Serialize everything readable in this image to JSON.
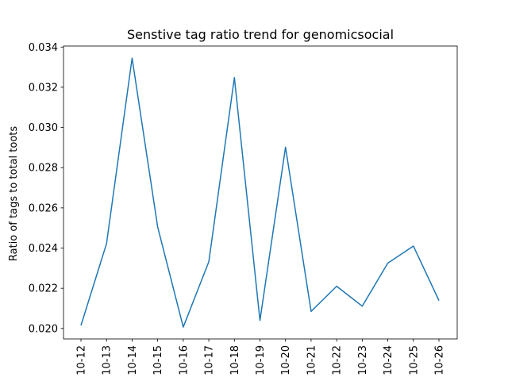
{
  "chart_data": {
    "type": "line",
    "title": "Senstive tag ratio trend for genomicsocial",
    "xlabel": "",
    "ylabel": "Ratio of tags to total toots",
    "categories": [
      "10-12",
      "10-13",
      "10-14",
      "10-15",
      "10-16",
      "10-17",
      "10-18",
      "10-19",
      "10-20",
      "10-21",
      "10-22",
      "10-23",
      "10-24",
      "10-25",
      "10-26"
    ],
    "series": [
      {
        "values": [
          0.02015,
          0.02422,
          0.03345,
          0.02505,
          0.02007,
          0.02332,
          0.03248,
          0.0204,
          0.02902,
          0.02085,
          0.0221,
          0.02111,
          0.02325,
          0.0241,
          0.02139
        ],
        "color": "#1f77b4"
      }
    ],
    "yticks": [
      "0.020",
      "0.022",
      "0.024",
      "0.026",
      "0.028",
      "0.030",
      "0.032",
      "0.034"
    ],
    "ylim": [
      0.01948,
      0.03405
    ],
    "grid": false
  }
}
